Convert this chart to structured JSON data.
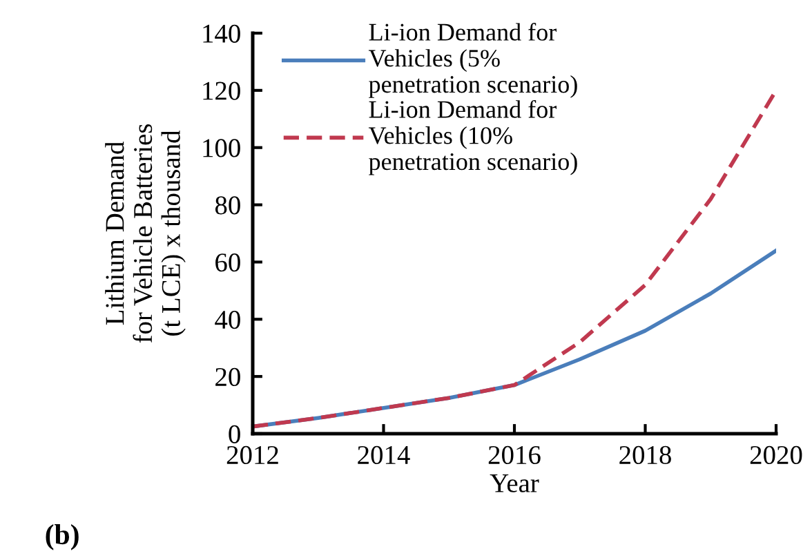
{
  "chart_data": {
    "type": "line",
    "xlabel": "Year",
    "ylabel": "Lithium Demand\nfor Vehicle Batteries\n(t LCE) x thousand",
    "x": [
      2012,
      2013,
      2014,
      2015,
      2016,
      2017,
      2018,
      2019,
      2020
    ],
    "series": [
      {
        "name": "Li-ion Demand for\nVehicles (5%\npenetration scenario)",
        "color": "#4a7ebb",
        "line_style": "solid",
        "values": [
          2.5,
          5.5,
          9,
          12.5,
          17,
          26,
          36,
          49,
          64
        ]
      },
      {
        "name": "Li-ion Demand for\nVehicles (10%\npenetration scenario)",
        "color": "#c0394f",
        "line_style": "dashed",
        "values": [
          2.5,
          5.5,
          9,
          12.5,
          17,
          32,
          52,
          82,
          120
        ]
      }
    ],
    "xlim": [
      2012,
      2020
    ],
    "xticks": [
      2012,
      2014,
      2016,
      2018,
      2020
    ],
    "ylim": [
      0,
      140
    ],
    "yticks": [
      0,
      20,
      40,
      60,
      80,
      100,
      120,
      140
    ],
    "grid": false,
    "legend": "top left",
    "marker": "none",
    "annotations": [
      "(b)"
    ]
  }
}
